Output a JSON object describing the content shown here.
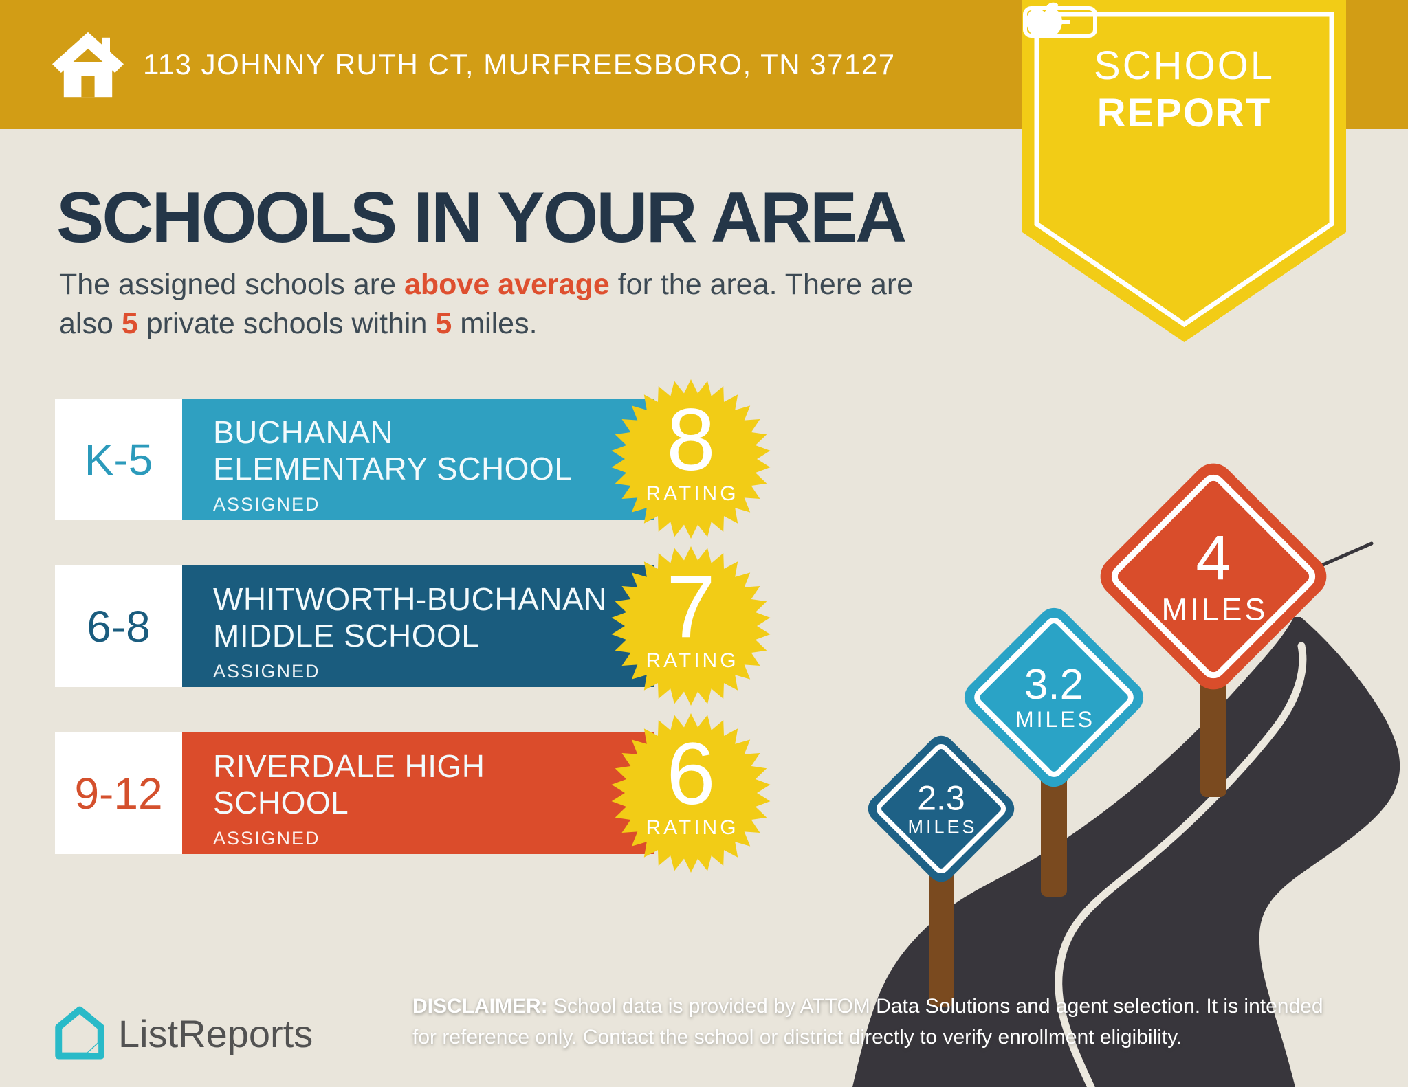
{
  "address_bar": {
    "address": "113 JOHNNY RUTH CT, MURFREESBORO, TN 37127"
  },
  "badge": {
    "word1": "SCHOOL",
    "word2": "REPORT"
  },
  "title": "SCHOOLS IN YOUR AREA",
  "subtitle": {
    "line1_pre": "The assigned schools are ",
    "line1_bold": "above average",
    "line1_post": " for the area. There are",
    "line2_pre": "also ",
    "line2_bold1": "5",
    "line2_mid": " private schools within ",
    "line2_bold2": "5",
    "line2_post": " miles."
  },
  "schools": [
    {
      "grades": "K-5",
      "name_line1": "BUCHANAN",
      "name_line2": "ELEMENTARY SCHOOL",
      "status": "ASSIGNED",
      "rating": "8",
      "rating_label": "RATING",
      "color": "#2FA0C1",
      "grade_color": "#2B9ABB"
    },
    {
      "grades": "6-8",
      "name_line1": "WHITWORTH-BUCHANAN",
      "name_line2": "MIDDLE SCHOOL",
      "status": "ASSIGNED",
      "rating": "7",
      "rating_label": "RATING",
      "color": "#1A5C7E",
      "grade_color": "#1A5C7E"
    },
    {
      "grades": "9-12",
      "name_line1": "RIVERDALE HIGH",
      "name_line2": "SCHOOL",
      "status": "ASSIGNED",
      "rating": "6",
      "rating_label": "RATING",
      "color": "#DB4C2B",
      "grade_color": "#D4502D"
    }
  ],
  "signs": [
    {
      "distance": "2.3",
      "unit": "MILES",
      "color": "#1E6186"
    },
    {
      "distance": "3.2",
      "unit": "MILES",
      "color": "#2AA3C6"
    },
    {
      "distance": "4",
      "unit": "MILES",
      "color": "#D94D2B"
    }
  ],
  "footer": {
    "brand": "ListReports",
    "disclaimer_label": "DISCLAIMER:",
    "disclaimer_line1": " School data is provided by ATTOM Data Solutions and agent selection. It is intended",
    "disclaimer_line2": "for reference only. Contact the school or district directly to verify enrollment eligibility."
  },
  "colors": {
    "banner": "#D29D15",
    "badge_yellow": "#F2CC16",
    "background": "#E9E5DB",
    "heading": "#243648",
    "accent": "#DE4F2F",
    "star_yellow": "#F2CC16",
    "road": "#38363C",
    "road_line": "#ECE8DE",
    "post_brown": "#7A4A1F",
    "brand_teal": "#29BAC8",
    "brand_text": "#525252"
  }
}
